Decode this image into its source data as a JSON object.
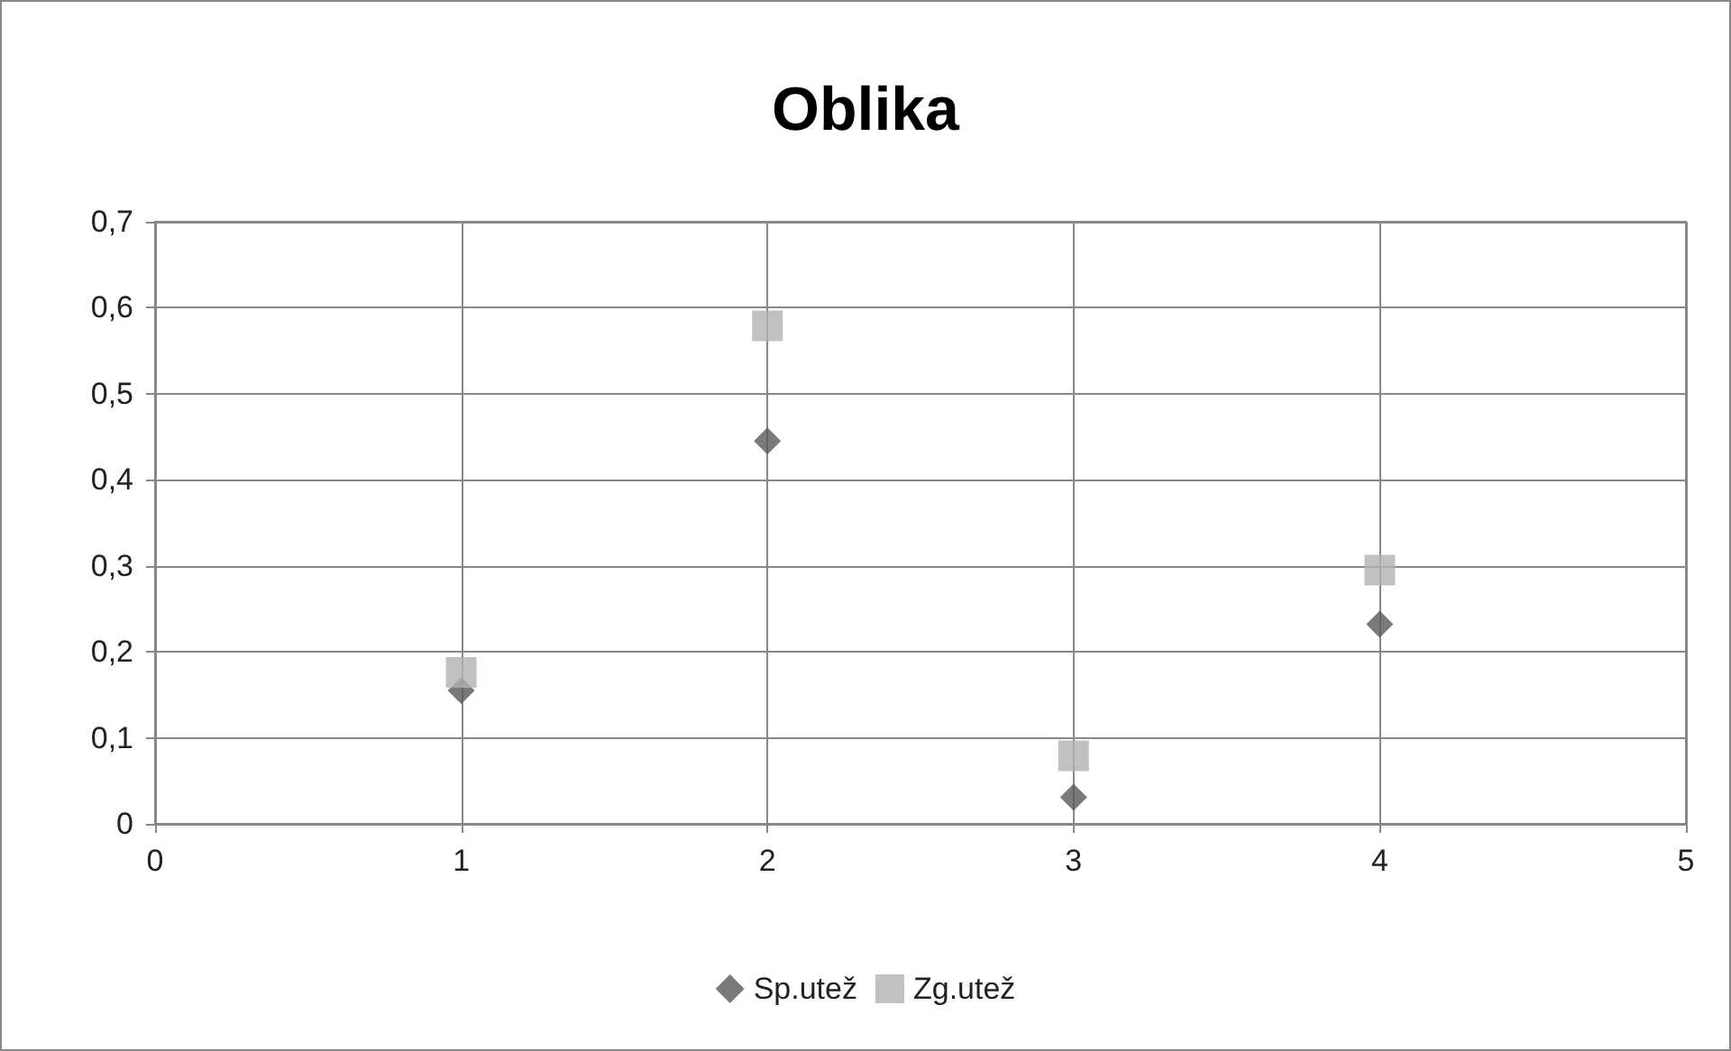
{
  "chart_data": {
    "type": "scatter",
    "title": "Oblika",
    "x": [
      1,
      2,
      3,
      4
    ],
    "series": [
      {
        "name": "Sp.utež",
        "color": "#595959",
        "marker": "diamond",
        "values": [
          0.155,
          0.445,
          0.031,
          0.232
        ]
      },
      {
        "name": "Zg.utež",
        "color": "#b2b2b2",
        "marker": "square",
        "values": [
          0.176,
          0.579,
          0.079,
          0.295
        ]
      }
    ],
    "xlim": [
      0,
      5
    ],
    "xticks": [
      0,
      1,
      2,
      3,
      4,
      5
    ],
    "ylim": [
      0,
      0.7
    ],
    "yticks": [
      0,
      {
        "value": 0.1,
        "label": "0,1"
      },
      {
        "value": 0.2,
        "label": "0,2"
      },
      {
        "value": 0.3,
        "label": "0,3"
      },
      {
        "value": 0.4,
        "label": "0,4"
      },
      {
        "value": 0.5,
        "label": "0,5"
      },
      {
        "value": 0.6,
        "label": "0,6"
      },
      {
        "value": 0.7,
        "label": "0,7"
      }
    ],
    "grid": true,
    "legend": "bottom"
  }
}
